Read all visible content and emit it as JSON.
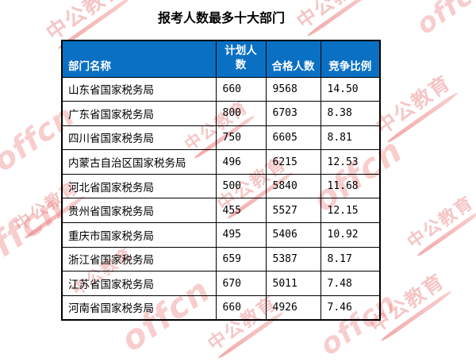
{
  "title": "报考人数最多十大部门",
  "watermark": {
    "brand_cn": "中公教育",
    "brand_en": "offcn"
  },
  "colors": {
    "header_bg": "#0a70c4",
    "header_text": "#ffffff",
    "grid": "#000000",
    "watermark_pink": "#ee8282"
  },
  "table": {
    "columns": [
      "部门名称",
      "计划人数",
      "合格人数",
      "竞争比例"
    ],
    "rows": [
      [
        "山东省国家税务局",
        "660",
        "9568",
        "14.50"
      ],
      [
        "广东省国家税务局",
        "800",
        "6703",
        "8.38"
      ],
      [
        "四川省国家税务局",
        "750",
        "6605",
        "8.81"
      ],
      [
        "内蒙古自治区国家税务局",
        "496",
        "6215",
        "12.53"
      ],
      [
        "河北省国家税务局",
        "500",
        "5840",
        "11.68"
      ],
      [
        "贵州省国家税务局",
        "455",
        "5527",
        "12.15"
      ],
      [
        "重庆市国家税务局",
        "495",
        "5406",
        "10.92"
      ],
      [
        "浙江省国家税务局",
        "659",
        "5387",
        "8.17"
      ],
      [
        "江苏省国家税务局",
        "670",
        "5011",
        "7.48"
      ],
      [
        "河南省国家税务局",
        "660",
        "4926",
        "7.46"
      ]
    ]
  },
  "chart_data": {
    "type": "table",
    "title": "报考人数最多十大部门",
    "columns": [
      "部门名称",
      "计划人数",
      "合格人数",
      "竞争比例"
    ],
    "rows": [
      {
        "department": "山东省国家税务局",
        "planned": 660,
        "qualified": 9568,
        "ratio": 14.5
      },
      {
        "department": "广东省国家税务局",
        "planned": 800,
        "qualified": 6703,
        "ratio": 8.38
      },
      {
        "department": "四川省国家税务局",
        "planned": 750,
        "qualified": 6605,
        "ratio": 8.81
      },
      {
        "department": "内蒙古自治区国家税务局",
        "planned": 496,
        "qualified": 6215,
        "ratio": 12.53
      },
      {
        "department": "河北省国家税务局",
        "planned": 500,
        "qualified": 5840,
        "ratio": 11.68
      },
      {
        "department": "贵州省国家税务局",
        "planned": 455,
        "qualified": 5527,
        "ratio": 12.15
      },
      {
        "department": "重庆市国家税务局",
        "planned": 495,
        "qualified": 5406,
        "ratio": 10.92
      },
      {
        "department": "浙江省国家税务局",
        "planned": 659,
        "qualified": 5387,
        "ratio": 8.17
      },
      {
        "department": "江苏省国家税务局",
        "planned": 670,
        "qualified": 5011,
        "ratio": 7.48
      },
      {
        "department": "河南省国家税务局",
        "planned": 660,
        "qualified": 4926,
        "ratio": 7.46
      }
    ]
  }
}
